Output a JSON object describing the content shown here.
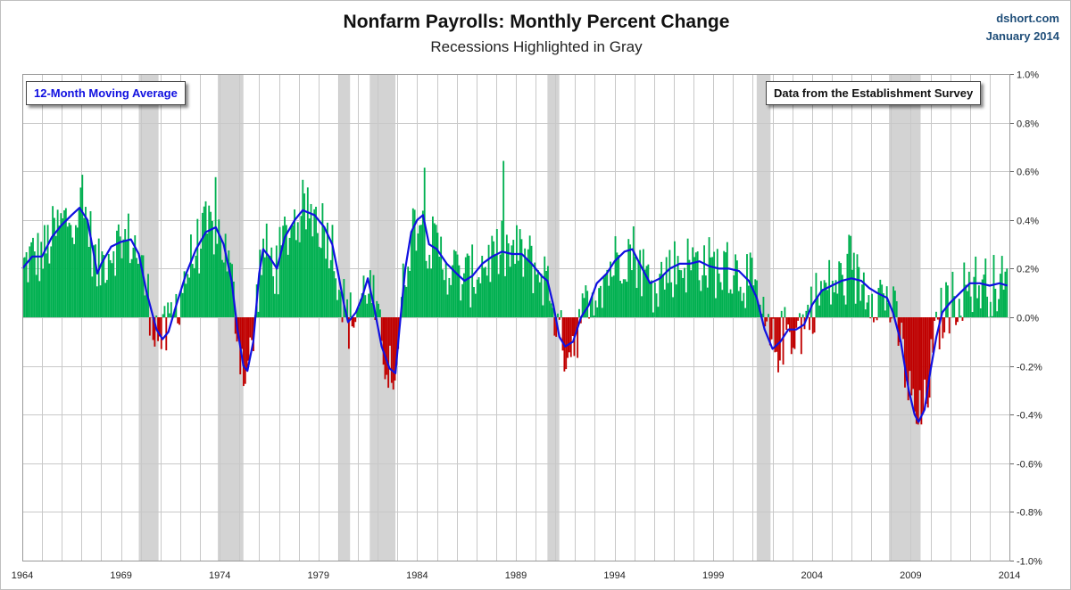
{
  "title": "Nonfarm Payrolls:  Monthly Percent Change",
  "subtitle": "Recessions  Highlighted in Gray",
  "credit": {
    "site": "dshort.com",
    "date": "January 2014"
  },
  "legend_ma": "12-Month Moving Average",
  "legend_source": "Data from the Establishment Survey",
  "colors": {
    "positive": "#00b050",
    "negative": "#c00000",
    "ma": "#1010e0",
    "recession": "#d3d3d3",
    "grid": "#c8c8c8"
  },
  "chart_data": {
    "type": "bar",
    "xlim": [
      1964,
      2014
    ],
    "ylim": [
      -1.0,
      1.0
    ],
    "y_ticks": [
      "1.0%",
      "0.8%",
      "0.6%",
      "0.4%",
      "0.2%",
      "0.0%",
      "-0.2%",
      "-0.4%",
      "-0.6%",
      "-0.8%",
      "-1.0%"
    ],
    "x_ticks": [
      "1964",
      "1969",
      "1974",
      "1979",
      "1984",
      "1989",
      "1994",
      "1999",
      "2004",
      "2009",
      "2014"
    ],
    "recessions": [
      [
        1969.9,
        1970.9
      ],
      [
        1973.9,
        1975.2
      ],
      [
        1980.0,
        1980.6
      ],
      [
        1981.6,
        1982.9
      ],
      [
        1990.6,
        1991.2
      ],
      [
        2001.2,
        2001.9
      ],
      [
        2007.9,
        2009.5
      ]
    ],
    "series": [
      {
        "name": "12-Month Moving Average",
        "type": "line",
        "points": [
          [
            1964.0,
            0.2
          ],
          [
            1964.5,
            0.25
          ],
          [
            1965.0,
            0.25
          ],
          [
            1965.5,
            0.33
          ],
          [
            1966.0,
            0.38
          ],
          [
            1966.5,
            0.42
          ],
          [
            1966.9,
            0.45
          ],
          [
            1967.3,
            0.4
          ],
          [
            1967.8,
            0.18
          ],
          [
            1968.0,
            0.22
          ],
          [
            1968.5,
            0.29
          ],
          [
            1969.0,
            0.31
          ],
          [
            1969.5,
            0.32
          ],
          [
            1969.9,
            0.26
          ],
          [
            1970.3,
            0.1
          ],
          [
            1970.8,
            -0.05
          ],
          [
            1971.1,
            -0.09
          ],
          [
            1971.4,
            -0.06
          ],
          [
            1971.8,
            0.05
          ],
          [
            1972.3,
            0.18
          ],
          [
            1972.8,
            0.28
          ],
          [
            1973.3,
            0.35
          ],
          [
            1973.8,
            0.37
          ],
          [
            1974.2,
            0.3
          ],
          [
            1974.6,
            0.15
          ],
          [
            1974.9,
            -0.05
          ],
          [
            1975.2,
            -0.2
          ],
          [
            1975.4,
            -0.22
          ],
          [
            1975.7,
            -0.1
          ],
          [
            1976.0,
            0.18
          ],
          [
            1976.2,
            0.28
          ],
          [
            1976.5,
            0.25
          ],
          [
            1976.9,
            0.2
          ],
          [
            1977.3,
            0.33
          ],
          [
            1977.8,
            0.4
          ],
          [
            1978.2,
            0.44
          ],
          [
            1978.8,
            0.42
          ],
          [
            1979.3,
            0.37
          ],
          [
            1979.7,
            0.3
          ],
          [
            1980.0,
            0.18
          ],
          [
            1980.3,
            0.05
          ],
          [
            1980.5,
            -0.02
          ],
          [
            1980.9,
            0.02
          ],
          [
            1981.2,
            0.08
          ],
          [
            1981.5,
            0.16
          ],
          [
            1981.8,
            0.05
          ],
          [
            1982.2,
            -0.12
          ],
          [
            1982.6,
            -0.21
          ],
          [
            1982.9,
            -0.23
          ],
          [
            1983.1,
            -0.05
          ],
          [
            1983.4,
            0.2
          ],
          [
            1983.7,
            0.35
          ],
          [
            1984.0,
            0.4
          ],
          [
            1984.3,
            0.42
          ],
          [
            1984.6,
            0.3
          ],
          [
            1985.0,
            0.28
          ],
          [
            1985.5,
            0.22
          ],
          [
            1986.0,
            0.18
          ],
          [
            1986.4,
            0.15
          ],
          [
            1986.8,
            0.17
          ],
          [
            1987.3,
            0.22
          ],
          [
            1987.8,
            0.25
          ],
          [
            1988.3,
            0.27
          ],
          [
            1988.8,
            0.26
          ],
          [
            1989.3,
            0.26
          ],
          [
            1989.8,
            0.22
          ],
          [
            1990.3,
            0.17
          ],
          [
            1990.6,
            0.15
          ],
          [
            1990.9,
            0.05
          ],
          [
            1991.2,
            -0.08
          ],
          [
            1991.5,
            -0.12
          ],
          [
            1991.9,
            -0.1
          ],
          [
            1992.3,
            0.0
          ],
          [
            1992.7,
            0.05
          ],
          [
            1993.1,
            0.14
          ],
          [
            1993.6,
            0.18
          ],
          [
            1994.0,
            0.23
          ],
          [
            1994.5,
            0.27
          ],
          [
            1994.9,
            0.28
          ],
          [
            1995.4,
            0.2
          ],
          [
            1995.8,
            0.14
          ],
          [
            1996.3,
            0.16
          ],
          [
            1996.8,
            0.2
          ],
          [
            1997.3,
            0.22
          ],
          [
            1997.8,
            0.22
          ],
          [
            1998.3,
            0.23
          ],
          [
            1998.8,
            0.21
          ],
          [
            1999.3,
            0.2
          ],
          [
            1999.8,
            0.2
          ],
          [
            2000.3,
            0.19
          ],
          [
            2000.8,
            0.15
          ],
          [
            2001.2,
            0.08
          ],
          [
            2001.6,
            -0.05
          ],
          [
            2002.0,
            -0.13
          ],
          [
            2002.4,
            -0.1
          ],
          [
            2002.8,
            -0.05
          ],
          [
            2003.2,
            -0.05
          ],
          [
            2003.6,
            -0.03
          ],
          [
            2004.0,
            0.05
          ],
          [
            2004.5,
            0.11
          ],
          [
            2005.0,
            0.13
          ],
          [
            2005.5,
            0.15
          ],
          [
            2006.0,
            0.16
          ],
          [
            2006.5,
            0.15
          ],
          [
            2006.9,
            0.12
          ],
          [
            2007.3,
            0.1
          ],
          [
            2007.8,
            0.08
          ],
          [
            2008.1,
            0.02
          ],
          [
            2008.5,
            -0.1
          ],
          [
            2008.9,
            -0.3
          ],
          [
            2009.2,
            -0.4
          ],
          [
            2009.4,
            -0.43
          ],
          [
            2009.7,
            -0.38
          ],
          [
            2010.0,
            -0.22
          ],
          [
            2010.3,
            -0.08
          ],
          [
            2010.6,
            0.02
          ],
          [
            2011.0,
            0.06
          ],
          [
            2011.5,
            0.1
          ],
          [
            2012.0,
            0.14
          ],
          [
            2012.5,
            0.14
          ],
          [
            2013.0,
            0.13
          ],
          [
            2013.5,
            0.14
          ],
          [
            2013.9,
            0.13
          ]
        ]
      }
    ]
  }
}
